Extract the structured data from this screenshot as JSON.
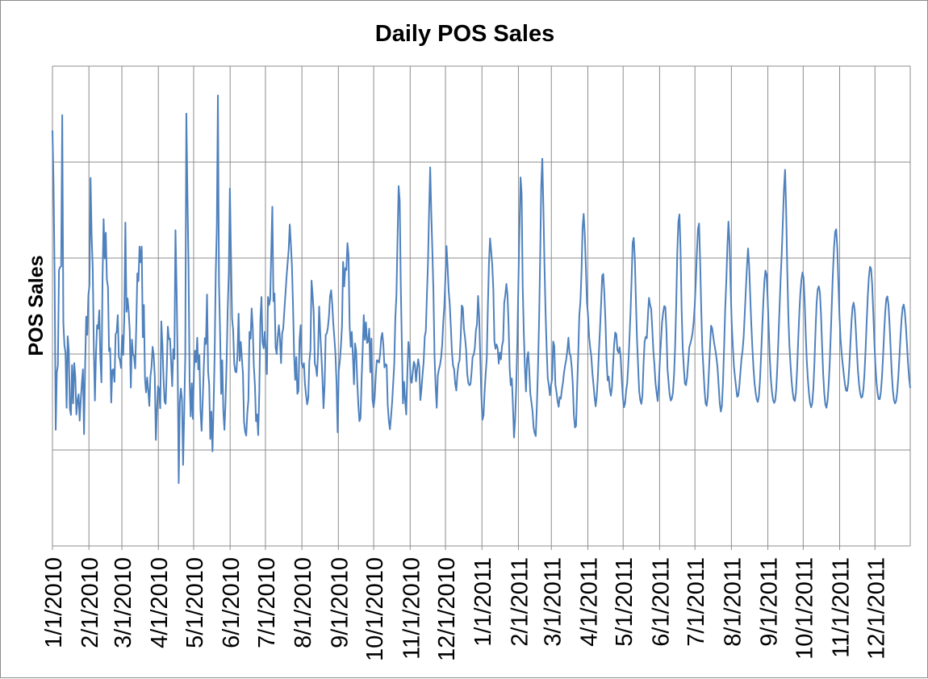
{
  "chart_data": {
    "type": "line",
    "title": "Daily POS Sales",
    "xlabel": "",
    "ylabel": "POS Sales",
    "x_range": [
      "1/1/2010",
      "12/31/2011"
    ],
    "y_tick_labels_shown": false,
    "grid": "on",
    "legend": "none",
    "line_color": "#4f81bd",
    "tick_labels": [
      "1/1/2010",
      "2/1/2010",
      "3/1/2010",
      "4/1/2010",
      "5/1/2010",
      "6/1/2010",
      "7/1/2010",
      "8/1/2010",
      "9/1/2010",
      "10/1/2010",
      "11/1/2010",
      "12/1/2010",
      "1/1/2011",
      "2/1/2011",
      "3/1/2011",
      "4/1/2011",
      "5/1/2011",
      "6/1/2011",
      "7/1/2011",
      "8/1/2011",
      "9/1/2011",
      "10/1/2011",
      "11/1/2011",
      "12/1/2011"
    ],
    "series": [
      {
        "start_date": "1/1/2010",
        "interval": "1 day",
        "values": [
          0.866,
          0.756,
          0.56,
          0.242,
          0.362,
          0.376,
          0.575,
          0.581,
          0.583,
          0.898,
          0.466,
          0.418,
          0.402,
          0.288,
          0.437,
          0.407,
          0.286,
          0.273,
          0.377,
          0.297,
          0.381,
          0.353,
          0.274,
          0.302,
          0.316,
          0.261,
          0.304,
          0.338,
          0.368,
          0.233,
          0.373,
          0.478,
          0.44,
          0.522,
          0.544,
          0.767,
          0.646,
          0.58,
          0.413,
          0.303,
          0.401,
          0.46,
          0.453,
          0.491,
          0.391,
          0.341,
          0.555,
          0.681,
          0.599,
          0.653,
          0.555,
          0.54,
          0.406,
          0.412,
          0.299,
          0.367,
          0.368,
          0.342,
          0.441,
          0.446,
          0.481,
          0.394,
          0.387,
          0.371,
          0.439,
          0.398,
          0.475,
          0.674,
          0.488,
          0.516,
          0.49,
          0.448,
          0.33,
          0.43,
          0.399,
          0.395,
          0.37,
          0.458,
          0.568,
          0.552,
          0.624,
          0.591,
          0.624,
          0.435,
          0.502,
          0.349,
          0.32,
          0.351,
          0.324,
          0.292,
          0.353,
          0.373,
          0.415,
          0.397,
          0.354,
          0.221,
          0.283,
          0.333,
          0.326,
          0.287,
          0.468,
          0.421,
          0.351,
          0.301,
          0.296,
          0.367,
          0.457,
          0.431,
          0.432,
          0.383,
          0.333,
          0.41,
          0.39,
          0.658,
          0.541,
          0.385,
          0.131,
          0.299,
          0.328,
          0.306,
          0.169,
          0.275,
          0.395,
          0.901,
          0.733,
          0.582,
          0.344,
          0.27,
          0.339,
          0.265,
          0.365,
          0.407,
          0.383,
          0.434,
          0.368,
          0.397,
          0.284,
          0.24,
          0.302,
          0.37,
          0.433,
          0.421,
          0.524,
          0.364,
          0.336,
          0.223,
          0.28,
          0.197,
          0.287,
          0.4,
          0.567,
          0.665,
          0.939,
          0.546,
          0.444,
          0.317,
          0.387,
          0.28,
          0.242,
          0.3,
          0.385,
          0.495,
          0.569,
          0.745,
          0.608,
          0.474,
          0.45,
          0.38,
          0.363,
          0.362,
          0.401,
          0.484,
          0.386,
          0.425,
          0.392,
          0.359,
          0.259,
          0.238,
          0.23,
          0.277,
          0.304,
          0.446,
          0.432,
          0.495,
          0.455,
          0.375,
          0.335,
          0.26,
          0.274,
          0.231,
          0.319,
          0.471,
          0.519,
          0.425,
          0.412,
          0.446,
          0.407,
          0.358,
          0.519,
          0.502,
          0.514,
          0.614,
          0.707,
          0.51,
          0.526,
          0.414,
          0.4,
          0.436,
          0.46,
          0.431,
          0.381,
          0.443,
          0.453,
          0.489,
          0.524,
          0.559,
          0.589,
          0.617,
          0.67,
          0.63,
          0.584,
          0.5,
          0.398,
          0.346,
          0.394,
          0.317,
          0.323,
          0.43,
          0.46,
          0.38,
          0.372,
          0.381,
          0.337,
          0.314,
          0.295,
          0.308,
          0.385,
          0.408,
          0.553,
          0.523,
          0.487,
          0.38,
          0.373,
          0.354,
          0.403,
          0.499,
          0.445,
          0.4,
          0.35,
          0.287,
          0.334,
          0.44,
          0.443,
          0.455,
          0.478,
          0.52,
          0.533,
          0.505,
          0.463,
          0.433,
          0.398,
          0.338,
          0.237,
          0.365,
          0.385,
          0.417,
          0.458,
          0.592,
          0.541,
          0.579,
          0.575,
          0.631,
          0.606,
          0.459,
          0.415,
          0.446,
          0.395,
          0.337,
          0.422,
          0.406,
          0.342,
          0.294,
          0.26,
          0.266,
          0.347,
          0.41,
          0.481,
          0.43,
          0.466,
          0.423,
          0.426,
          0.453,
          0.362,
          0.432,
          0.305,
          0.289,
          0.309,
          0.355,
          0.387,
          0.386,
          0.382,
          0.4,
          0.433,
          0.444,
          0.419,
          0.372,
          0.379,
          0.377,
          0.294,
          0.261,
          0.243,
          0.268,
          0.298,
          0.338,
          0.38,
          0.476,
          0.523,
          0.639,
          0.75,
          0.72,
          0.541,
          0.418,
          0.297,
          0.342,
          0.302,
          0.274,
          0.358,
          0.425,
          0.406,
          0.348,
          0.34,
          0.362,
          0.384,
          0.377,
          0.343,
          0.369,
          0.389,
          0.373,
          0.304,
          0.327,
          0.357,
          0.384,
          0.436,
          0.448,
          0.523,
          0.592,
          0.699,
          0.789,
          0.694,
          0.615,
          0.528,
          0.395,
          0.333,
          0.288,
          0.355,
          0.368,
          0.377,
          0.392,
          0.418,
          0.466,
          0.5,
          0.56,
          0.625,
          0.582,
          0.531,
          0.503,
          0.455,
          0.403,
          0.376,
          0.368,
          0.338,
          0.324,
          0.358,
          0.379,
          0.387,
          0.433,
          0.501,
          0.497,
          0.453,
          0.434,
          0.41,
          0.36,
          0.34,
          0.335,
          0.337,
          0.361,
          0.395,
          0.398,
          0.413,
          0.449,
          0.462,
          0.521,
          0.478,
          0.393,
          0.314,
          0.263,
          0.272,
          0.322,
          0.36,
          0.392,
          0.5,
          0.59,
          0.641,
          0.615,
          0.586,
          0.536,
          0.427,
          0.411,
          0.42,
          0.412,
          0.38,
          0.403,
          0.389,
          0.417,
          0.427,
          0.506,
          0.523,
          0.546,
          0.523,
          0.464,
          0.371,
          0.335,
          0.349,
          0.294,
          0.226,
          0.262,
          0.328,
          0.42,
          0.544,
          0.658,
          0.768,
          0.735,
          0.54,
          0.445,
          0.373,
          0.322,
          0.39,
          0.404,
          0.367,
          0.317,
          0.3,
          0.281,
          0.247,
          0.235,
          0.229,
          0.292,
          0.368,
          0.465,
          0.597,
          0.75,
          0.807,
          0.705,
          0.584,
          0.486,
          0.411,
          0.35,
          0.335,
          0.314,
          0.335,
          0.347,
          0.426,
          0.417,
          0.336,
          0.321,
          0.302,
          0.29,
          0.31,
          0.307,
          0.326,
          0.341,
          0.362,
          0.377,
          0.389,
          0.408,
          0.434,
          0.402,
          0.396,
          0.373,
          0.337,
          0.273,
          0.247,
          0.25,
          0.328,
          0.4,
          0.481,
          0.509,
          0.571,
          0.664,
          0.692,
          0.65,
          0.583,
          0.508,
          0.481,
          0.436,
          0.413,
          0.395,
          0.361,
          0.336,
          0.311,
          0.291,
          0.312,
          0.351,
          0.405,
          0.452,
          0.504,
          0.563,
          0.567,
          0.526,
          0.469,
          0.39,
          0.345,
          0.353,
          0.327,
          0.313,
          0.331,
          0.38,
          0.42,
          0.445,
          0.441,
          0.408,
          0.403,
          0.414,
          0.393,
          0.347,
          0.309,
          0.289,
          0.297,
          0.323,
          0.34,
          0.379,
          0.429,
          0.484,
          0.554,
          0.632,
          0.642,
          0.598,
          0.51,
          0.43,
          0.376,
          0.322,
          0.304,
          0.296,
          0.315,
          0.38,
          0.426,
          0.436,
          0.433,
          0.479,
          0.517,
          0.503,
          0.494,
          0.454,
          0.407,
          0.378,
          0.339,
          0.319,
          0.302,
          0.339,
          0.386,
          0.426,
          0.466,
          0.486,
          0.5,
          0.498,
          0.452,
          0.369,
          0.341,
          0.315,
          0.303,
          0.307,
          0.32,
          0.356,
          0.415,
          0.503,
          0.612,
          0.676,
          0.691,
          0.615,
          0.492,
          0.412,
          0.372,
          0.338,
          0.335,
          0.352,
          0.383,
          0.414,
          0.422,
          0.431,
          0.444,
          0.466,
          0.5,
          0.55,
          0.611,
          0.66,
          0.672,
          0.592,
          0.494,
          0.412,
          0.37,
          0.327,
          0.297,
          0.292,
          0.312,
          0.362,
          0.412,
          0.459,
          0.454,
          0.437,
          0.421,
          0.408,
          0.392,
          0.371,
          0.334,
          0.297,
          0.28,
          0.292,
          0.342,
          0.414,
          0.493,
          0.55,
          0.623,
          0.676,
          0.634,
          0.539,
          0.464,
          0.417,
          0.375,
          0.352,
          0.331,
          0.311,
          0.313,
          0.333,
          0.362,
          0.391,
          0.408,
          0.437,
          0.485,
          0.535,
          0.582,
          0.62,
          0.585,
          0.521,
          0.461,
          0.412,
          0.37,
          0.339,
          0.319,
          0.305,
          0.3,
          0.312,
          0.347,
          0.398,
          0.454,
          0.507,
          0.552,
          0.574,
          0.566,
          0.517,
          0.453,
          0.39,
          0.347,
          0.32,
          0.304,
          0.298,
          0.304,
          0.33,
          0.379,
          0.438,
          0.5,
          0.561,
          0.612,
          0.678,
          0.744,
          0.784,
          0.701,
          0.578,
          0.481,
          0.418,
          0.378,
          0.344,
          0.32,
          0.305,
          0.302,
          0.32,
          0.365,
          0.424,
          0.48,
          0.525,
          0.554,
          0.57,
          0.559,
          0.509,
          0.441,
          0.384,
          0.346,
          0.317,
          0.297,
          0.289,
          0.298,
          0.329,
          0.383,
          0.45,
          0.507,
          0.535,
          0.541,
          0.529,
          0.484,
          0.419,
          0.36,
          0.319,
          0.295,
          0.288,
          0.302,
          0.334,
          0.38,
          0.441,
          0.508,
          0.572,
          0.622,
          0.655,
          0.66,
          0.62,
          0.548,
          0.478,
          0.431,
          0.401,
          0.378,
          0.357,
          0.337,
          0.324,
          0.323,
          0.339,
          0.374,
          0.421,
          0.466,
          0.498,
          0.507,
          0.491,
          0.451,
          0.404,
          0.364,
          0.336,
          0.318,
          0.309,
          0.311,
          0.327,
          0.361,
          0.411,
          0.468,
          0.521,
          0.561,
          0.582,
          0.578,
          0.545,
          0.489,
          0.428,
          0.377,
          0.341,
          0.318,
          0.306,
          0.306,
          0.321,
          0.351,
          0.394,
          0.443,
          0.487,
          0.515,
          0.52,
          0.502,
          0.462,
          0.41,
          0.361,
          0.325,
          0.304,
          0.297,
          0.302,
          0.32,
          0.351,
          0.391,
          0.434,
          0.472,
          0.497,
          0.503,
          0.488,
          0.458,
          0.419,
          0.38,
          0.349,
          0.329
        ]
      }
    ]
  }
}
